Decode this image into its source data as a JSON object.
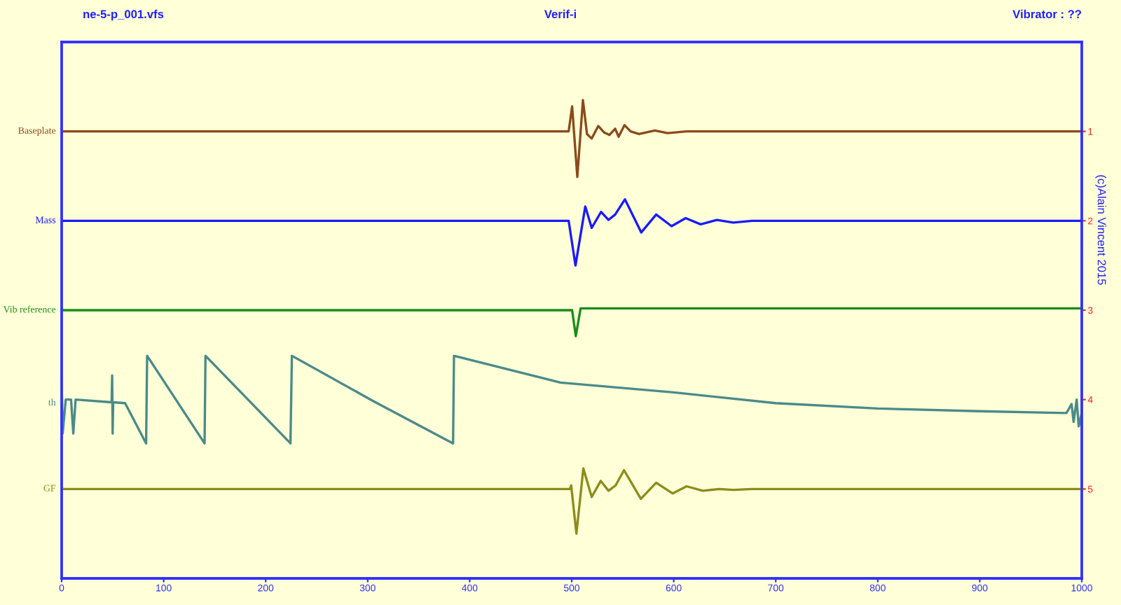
{
  "chart_data": {
    "type": "line",
    "title": "Verif-i",
    "annotations": [
      "ne-5-p_001.vfs",
      "Vibrator : ??",
      "(c)Alain Vincent 2015"
    ],
    "xlim": [
      0,
      1000
    ],
    "xticks": [
      0,
      100,
      200,
      300,
      400,
      500,
      600,
      700,
      800,
      900,
      1000
    ],
    "y2lim": [
      6,
      0
    ],
    "y2ticks": [
      1,
      2,
      3,
      4,
      5
    ],
    "grid": false,
    "legend": false,
    "series": [
      {
        "name": "Baseplate",
        "axis": "y2",
        "color": "#8b4a1a",
        "x": [
          0,
          497,
          500.4,
          505.5,
          511,
          515,
          519.6,
          526,
          531.6,
          537,
          542.6,
          546,
          551.7,
          557.7,
          566,
          581.5,
          594,
          612.6,
          1000
        ],
        "values": [
          1,
          1,
          0.72,
          1.51,
          0.65,
          1.03,
          1.08,
          0.94,
          1.01,
          1.04,
          0.97,
          1.06,
          0.93,
          1.0,
          1.03,
          0.99,
          1.02,
          1,
          1
        ]
      },
      {
        "name": "Mass",
        "axis": "y2",
        "color": "#1a1aff",
        "x": [
          0,
          497,
          503.7,
          513.3,
          519.6,
          528.8,
          536.1,
          542.6,
          552.2,
          568.2,
          582.8,
          597.9,
          611.7,
          626.4,
          642.4,
          658.4,
          676.8,
          1000
        ],
        "values": [
          2,
          2,
          2.5,
          1.84,
          2.08,
          1.9,
          1.99,
          1.93,
          1.76,
          2.13,
          1.93,
          2.06,
          1.97,
          2.04,
          1.99,
          2.02,
          2,
          2
        ]
      },
      {
        "name": "Vib reference",
        "axis": "y2",
        "color": "#1a8c1a",
        "x": [
          0,
          500.4,
          504,
          508.7,
          1000
        ],
        "values": [
          3,
          3,
          3.29,
          2.98,
          2.98
        ]
      },
      {
        "name": "th",
        "axis": "y2",
        "color": "#4a8a8a",
        "x": [
          0,
          1,
          4,
          9.2,
          11.4,
          13.7,
          49,
          49.5,
          50,
          50.5,
          62.2,
          82.8,
          83.8,
          140.1,
          141,
          224.3,
          225.7,
          306,
          383.7,
          384.6,
          489,
          600,
          700,
          800,
          900,
          985,
          990,
          992,
          995,
          997,
          1000
        ],
        "values": [
          3.78,
          4.38,
          4.0,
          4.0,
          4.38,
          4.0,
          4.03,
          3.73,
          4.38,
          4.03,
          4.04,
          4.49,
          3.51,
          4.49,
          3.51,
          4.49,
          3.51,
          4.02,
          4.49,
          3.51,
          3.81,
          3.92,
          4.04,
          4.1,
          4.13,
          4.15,
          4.05,
          4.25,
          4.0,
          4.3,
          4.15
        ]
      },
      {
        "name": "GF",
        "axis": "y2",
        "color": "#8c8c1a",
        "x": [
          0,
          498.2,
          499.5,
          504.6,
          511.4,
          519.6,
          528.4,
          536.1,
          543,
          551.3,
          567.8,
          582.8,
          598.9,
          612.6,
          628.6,
          644.6,
          658.4,
          676.8,
          1000
        ],
        "values": [
          5,
          5,
          4.96,
          5.5,
          4.77,
          5.09,
          4.91,
          5.02,
          4.96,
          4.79,
          5.11,
          4.93,
          5.05,
          4.97,
          5.02,
          5.0,
          5.01,
          5,
          5
        ]
      }
    ]
  }
}
